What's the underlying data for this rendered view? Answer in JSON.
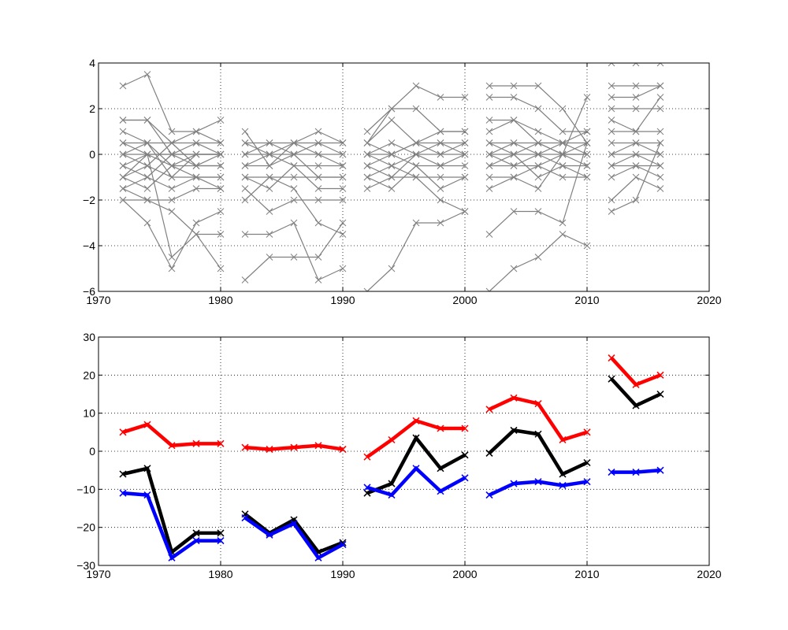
{
  "chart_data": [
    {
      "type": "line",
      "xlim": [
        1970,
        2020
      ],
      "ylim": [
        -6,
        4
      ],
      "xticks": [
        1970,
        1980,
        1990,
        2000,
        2010,
        2020
      ],
      "yticks": [
        -6,
        -4,
        -2,
        0,
        2,
        4
      ],
      "xtick_labels": [
        "1970",
        "1980",
        "1990",
        "2000",
        "2010",
        "2020"
      ],
      "ytick_labels": [
        "−6",
        "−4",
        "−2",
        "0",
        "2",
        "4"
      ],
      "grid": true,
      "line_color": "#808080",
      "marker": "x",
      "series_groups": [
        {
          "x": [
            1972,
            1974,
            1976,
            1978,
            1980
          ],
          "series": [
            {
              "values": [
                3,
                3.5,
                1,
                1,
                1.5
              ]
            },
            {
              "values": [
                1.5,
                1.5,
                0.5,
                1,
                0.5
              ]
            },
            {
              "values": [
                1.5,
                1.5,
                0,
                0,
                0
              ]
            },
            {
              "values": [
                1,
                0.5,
                -0.5,
                0,
                0
              ]
            },
            {
              "values": [
                0.5,
                0.5,
                0.5,
                0.5,
                0.5
              ]
            },
            {
              "values": [
                0.5,
                0,
                0,
                0.5,
                0
              ]
            },
            {
              "values": [
                0,
                0.5,
                -1,
                0,
                0
              ]
            },
            {
              "values": [
                0,
                0,
                0,
                0,
                0
              ]
            },
            {
              "values": [
                0,
                -0.5,
                0.5,
                -0.5,
                0
              ]
            },
            {
              "values": [
                -0.5,
                0,
                -0.5,
                -0.5,
                -0.5
              ]
            },
            {
              "values": [
                -0.5,
                -1,
                0,
                -0.5,
                -0.5
              ]
            },
            {
              "values": [
                -1,
                -0.5,
                -1,
                -1,
                -1
              ]
            },
            {
              "values": [
                -1,
                -1.5,
                -0.5,
                -1,
                -1
              ]
            },
            {
              "values": [
                -1.5,
                -1,
                -1.5,
                -1,
                -1.5
              ]
            },
            {
              "values": [
                -1.5,
                -2,
                -2,
                -1.5,
                -1.5
              ]
            },
            {
              "values": [
                -2,
                -2,
                -2.5,
                -3.5,
                -3.5
              ]
            },
            {
              "values": [
                -2,
                -3,
                -5,
                -3,
                -2.5
              ]
            },
            {
              "values": [
                -1,
                0,
                -4.5,
                -3.5,
                -5
              ]
            }
          ]
        },
        {
          "x": [
            1982,
            1984,
            1986,
            1988,
            1990
          ],
          "series": [
            {
              "values": [
                1,
                -0.5,
                0.5,
                1,
                0.5
              ]
            },
            {
              "values": [
                0.5,
                0.5,
                0.5,
                0.5,
                0.5
              ]
            },
            {
              "values": [
                0.5,
                0,
                0,
                0,
                0
              ]
            },
            {
              "values": [
                0,
                0.5,
                0,
                0.5,
                0
              ]
            },
            {
              "values": [
                0,
                0,
                0.5,
                0,
                -0.5
              ]
            },
            {
              "values": [
                -0.5,
                0,
                -0.5,
                -0.5,
                -0.5
              ]
            },
            {
              "values": [
                -0.5,
                -0.5,
                0,
                -1,
                -1
              ]
            },
            {
              "values": [
                -1,
                -1,
                -1,
                -1,
                -1
              ]
            },
            {
              "values": [
                -1,
                -1.5,
                -0.5,
                -1.5,
                -1.5
              ]
            },
            {
              "values": [
                -1.5,
                -2.5,
                -2,
                -2,
                -2
              ]
            },
            {
              "values": [
                -2,
                -1,
                -1.5,
                -3,
                -3.5
              ]
            },
            {
              "values": [
                -3.5,
                -3.5,
                -3,
                -5.5,
                -5
              ]
            },
            {
              "values": [
                -5.5,
                -4.5,
                -4.5,
                -4.5,
                -3
              ]
            }
          ]
        },
        {
          "x": [
            1992,
            1994,
            1996,
            1998,
            2000
          ],
          "series": [
            {
              "values": [
                1,
                2,
                3,
                2.5,
                2.5
              ]
            },
            {
              "values": [
                0.5,
                2,
                2,
                1,
                1
              ]
            },
            {
              "values": [
                0.5,
                1.5,
                0.5,
                1,
                1
              ]
            },
            {
              "values": [
                0.5,
                0,
                0.5,
                0.5,
                0.5
              ]
            },
            {
              "values": [
                0,
                0.5,
                0,
                0.5,
                0
              ]
            },
            {
              "values": [
                0,
                0,
                0.5,
                0,
                0.5
              ]
            },
            {
              "values": [
                0,
                -0.5,
                0,
                0,
                0
              ]
            },
            {
              "values": [
                -0.5,
                0,
                -0.5,
                -0.5,
                0
              ]
            },
            {
              "values": [
                -0.5,
                -1,
                0,
                -0.5,
                -0.5
              ]
            },
            {
              "values": [
                -1,
                -0.5,
                -1,
                -1,
                -1
              ]
            },
            {
              "values": [
                -1,
                -1.5,
                -0.5,
                -1.5,
                -1
              ]
            },
            {
              "values": [
                -1.5,
                -1,
                -1,
                -2,
                -2.5
              ]
            },
            {
              "values": [
                -6,
                -5,
                -3,
                -3,
                -2.5
              ]
            }
          ]
        },
        {
          "x": [
            2002,
            2004,
            2006,
            2008,
            2010
          ],
          "series": [
            {
              "values": [
                3,
                3,
                3,
                2,
                0.5
              ]
            },
            {
              "values": [
                2.5,
                2.5,
                2,
                1,
                1
              ]
            },
            {
              "values": [
                1.5,
                1.5,
                1,
                0.5,
                1
              ]
            },
            {
              "values": [
                1,
                1.5,
                0.5,
                0,
                0.5
              ]
            },
            {
              "values": [
                0.5,
                0.5,
                0.5,
                0.5,
                0.5
              ]
            },
            {
              "values": [
                0.5,
                0,
                0.5,
                0,
                0
              ]
            },
            {
              "values": [
                0,
                0.5,
                0,
                0.5,
                0
              ]
            },
            {
              "values": [
                0,
                0,
                0,
                0,
                0
              ]
            },
            {
              "values": [
                0,
                -0.5,
                0,
                -0.5,
                -0.5
              ]
            },
            {
              "values": [
                -0.5,
                -0.5,
                -0.5,
                0,
                -0.5
              ]
            },
            {
              "values": [
                -0.5,
                0,
                -1,
                -0.5,
                -1
              ]
            },
            {
              "values": [
                -1,
                -1,
                -0.5,
                -1,
                -1
              ]
            },
            {
              "values": [
                -1.5,
                -1,
                -1.5,
                0,
                2.5
              ]
            },
            {
              "values": [
                -3.5,
                -2.5,
                -2.5,
                -3,
                0.5
              ]
            },
            {
              "values": [
                -6,
                -5,
                -4.5,
                -3.5,
                -4
              ]
            }
          ]
        },
        {
          "x": [
            2012,
            2014,
            2016
          ],
          "series": [
            {
              "values": [
                4,
                4,
                4
              ]
            },
            {
              "values": [
                3,
                3,
                3
              ]
            },
            {
              "values": [
                2.5,
                2.5,
                3
              ]
            },
            {
              "values": [
                2,
                2,
                2
              ]
            },
            {
              "values": [
                1.5,
                1,
                2.5
              ]
            },
            {
              "values": [
                1,
                1,
                1
              ]
            },
            {
              "values": [
                0.5,
                0.5,
                0.5
              ]
            },
            {
              "values": [
                0,
                0.5,
                0
              ]
            },
            {
              "values": [
                0,
                0,
                0
              ]
            },
            {
              "values": [
                -0.5,
                0,
                -0.5
              ]
            },
            {
              "values": [
                -0.5,
                -0.5,
                -0.5
              ]
            },
            {
              "values": [
                -1,
                -0.5,
                -1
              ]
            },
            {
              "values": [
                -2,
                -1,
                -1.5
              ]
            },
            {
              "values": [
                -2.5,
                -2,
                0.5
              ]
            }
          ]
        }
      ]
    },
    {
      "type": "line",
      "xlim": [
        1970,
        2020
      ],
      "ylim": [
        -30,
        30
      ],
      "xticks": [
        1970,
        1980,
        1990,
        2000,
        2010,
        2020
      ],
      "yticks": [
        -30,
        -20,
        -10,
        0,
        10,
        20,
        30
      ],
      "xtick_labels": [
        "1970",
        "1980",
        "1990",
        "2000",
        "2010",
        "2020"
      ],
      "ytick_labels": [
        "−30",
        "−20",
        "−10",
        "0",
        "10",
        "20",
        "30"
      ],
      "grid": true,
      "marker": "x",
      "series": [
        {
          "color": "#ff0000",
          "segments": [
            {
              "x": [
                1972,
                1974,
                1976,
                1978,
                1980
              ],
              "values": [
                5,
                7,
                1.5,
                2,
                2
              ]
            },
            {
              "x": [
                1982,
                1984,
                1986,
                1988,
                1990
              ],
              "values": [
                1,
                0.5,
                1,
                1.5,
                0.5
              ]
            },
            {
              "x": [
                1992,
                1994,
                1996,
                1998,
                2000
              ],
              "values": [
                -1.5,
                3,
                8,
                6,
                6
              ]
            },
            {
              "x": [
                2002,
                2004,
                2006,
                2008,
                2010
              ],
              "values": [
                11,
                14,
                12.5,
                3,
                5
              ]
            },
            {
              "x": [
                2012,
                2014,
                2016
              ],
              "values": [
                24.5,
                17.5,
                20
              ]
            }
          ]
        },
        {
          "color": "#000000",
          "segments": [
            {
              "x": [
                1972,
                1974,
                1976,
                1978,
                1980
              ],
              "values": [
                -6,
                -4.5,
                -26.5,
                -21.5,
                -21.5
              ]
            },
            {
              "x": [
                1982,
                1984,
                1986,
                1988,
                1990
              ],
              "values": [
                -16.5,
                -21.5,
                -18,
                -26.5,
                -24
              ]
            },
            {
              "x": [
                1992,
                1994,
                1996,
                1998,
                2000
              ],
              "values": [
                -11,
                -8.5,
                3.5,
                -4.5,
                -1
              ]
            },
            {
              "x": [
                2002,
                2004,
                2006,
                2008,
                2010
              ],
              "values": [
                -0.5,
                5.5,
                4.5,
                -6,
                -3
              ]
            },
            {
              "x": [
                2012,
                2014,
                2016
              ],
              "values": [
                19,
                12,
                15
              ]
            }
          ]
        },
        {
          "color": "#0000ff",
          "segments": [
            {
              "x": [
                1972,
                1974,
                1976,
                1978,
                1980
              ],
              "values": [
                -11,
                -11.5,
                -28,
                -23.5,
                -23.5
              ]
            },
            {
              "x": [
                1982,
                1984,
                1986,
                1988,
                1990
              ],
              "values": [
                -17.5,
                -22,
                -19,
                -28,
                -24.5
              ]
            },
            {
              "x": [
                1992,
                1994,
                1996,
                1998,
                2000
              ],
              "values": [
                -9.5,
                -11.5,
                -4.5,
                -10.5,
                -7
              ]
            },
            {
              "x": [
                2002,
                2004,
                2006,
                2008,
                2010
              ],
              "values": [
                -11.5,
                -8.5,
                -8,
                -9,
                -8
              ]
            },
            {
              "x": [
                2012,
                2014,
                2016
              ],
              "values": [
                -5.5,
                -5.5,
                -5
              ]
            }
          ]
        }
      ]
    }
  ]
}
